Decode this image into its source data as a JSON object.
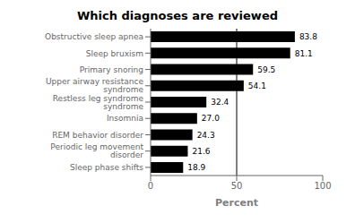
{
  "chart_data": {
    "type": "bar",
    "orientation": "horizontal",
    "title": "Which diagnoses are reviewed",
    "xlabel": "Percent",
    "categories": [
      "Sleep phase shifts",
      "Periodic leg movement disorder",
      "REM behavior disorder",
      "Insomnia",
      "Restless leg syndrome syndrome",
      "Upper airway resistance syndrome",
      "Primary snoring",
      "Sleep bruxism",
      "Obstructive sleep apnea"
    ],
    "values": [
      18.9,
      21.6,
      24.3,
      27.0,
      32.4,
      54.1,
      59.5,
      81.1,
      83.8
    ],
    "value_labels": [
      "18.9",
      "21.6",
      "24.3",
      "27.0",
      "32.4",
      "54.1",
      "59.5",
      "81.1",
      "83.8"
    ],
    "data_labels": true,
    "color": "#000000",
    "xlim": [
      0,
      100
    ],
    "xticks": [
      0,
      50,
      100
    ],
    "vline": {
      "x": 50,
      "color": "#000000"
    },
    "grid": false
  }
}
